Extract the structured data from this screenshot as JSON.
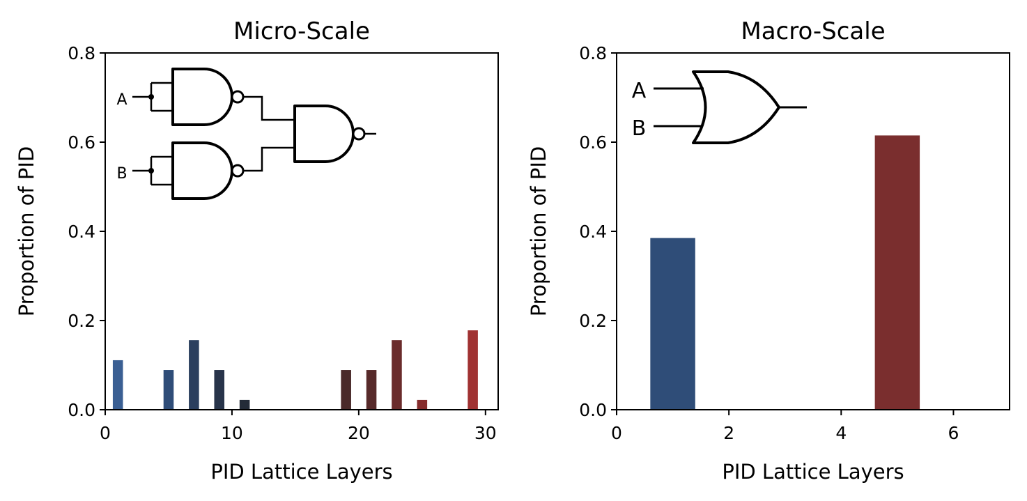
{
  "chart_data": [
    {
      "type": "bar",
      "title": "Micro-Scale",
      "xlabel": "PID Lattice Layers",
      "ylabel": "Proportion of PID",
      "xlim": [
        0,
        31
      ],
      "ylim": [
        0,
        0.8
      ],
      "xticks": [
        0,
        10,
        20,
        30
      ],
      "xtick_labels": [
        "0",
        "10",
        "20",
        "30"
      ],
      "yticks": [
        0.0,
        0.2,
        0.4,
        0.6,
        0.8
      ],
      "ytick_labels": [
        "0.0",
        "0.2",
        "0.4",
        "0.6",
        "0.8"
      ],
      "bar_width": 0.8,
      "x": [
        1,
        5,
        7,
        9,
        11,
        19,
        21,
        23,
        25,
        29
      ],
      "values": [
        0.111,
        0.089,
        0.156,
        0.089,
        0.022,
        0.089,
        0.089,
        0.156,
        0.022,
        0.178
      ],
      "colors": [
        "#3a5f93",
        "#2f4d78",
        "#2b3f5e",
        "#28344a",
        "#242c38",
        "#4a2a2a",
        "#572a2a",
        "#6a2b2b",
        "#862d2d",
        "#a03232"
      ],
      "inset": {
        "kind": "logic-circuit",
        "inputs": [
          "A",
          "B"
        ]
      }
    },
    {
      "type": "bar",
      "title": "Macro-Scale",
      "xlabel": "PID Lattice Layers",
      "ylabel": "Proportion of PID",
      "xlim": [
        0,
        7
      ],
      "ylim": [
        0,
        0.8
      ],
      "xticks": [
        0,
        2,
        4,
        6
      ],
      "xtick_labels": [
        "0",
        "2",
        "4",
        "6"
      ],
      "yticks": [
        0.0,
        0.2,
        0.4,
        0.6,
        0.8
      ],
      "ytick_labels": [
        "0.0",
        "0.2",
        "0.4",
        "0.6",
        "0.8"
      ],
      "bar_width": 0.8,
      "x": [
        1,
        5
      ],
      "values": [
        0.385,
        0.615
      ],
      "colors": [
        "#2f4d78",
        "#7a2e2e"
      ],
      "inset": {
        "kind": "or-gate",
        "inputs": [
          "A",
          "B"
        ]
      }
    }
  ]
}
